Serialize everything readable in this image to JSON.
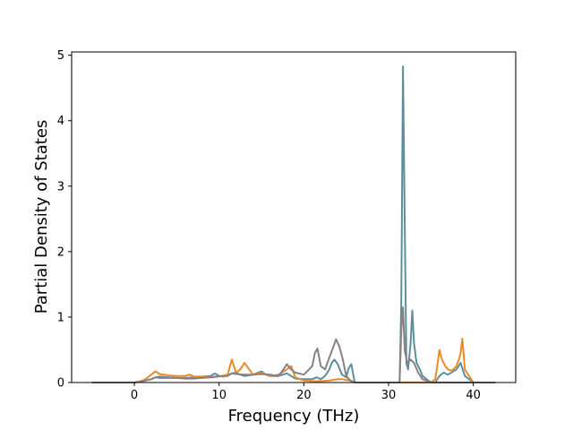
{
  "chart_data": {
    "type": "line",
    "title": "",
    "xlabel": "Frequency (THz)",
    "ylabel": "Partial Density of States",
    "xlim": [
      -7.4,
      45.0
    ],
    "ylim": [
      0,
      5.05
    ],
    "xticks": [
      0,
      10,
      20,
      30,
      40
    ],
    "yticks": [
      0,
      1,
      2,
      3,
      4,
      5
    ],
    "xtick_labels": [
      "0",
      "10",
      "20",
      "30",
      "40"
    ],
    "ytick_labels": [
      "0",
      "1",
      "2",
      "3",
      "4",
      "5"
    ],
    "grid": false,
    "legend": "none",
    "series": [
      {
        "color": "#5c8f9a",
        "x": [
          -5,
          -1,
          0,
          1,
          2,
          2.5,
          3,
          4,
          5,
          6,
          7,
          8,
          9,
          9.5,
          10,
          10.5,
          11,
          11.5,
          12,
          12.5,
          13,
          14,
          15,
          15.5,
          16,
          17,
          18,
          18.5,
          19,
          20,
          21,
          21.5,
          22,
          22.5,
          23,
          23.3,
          23.6,
          24,
          24.5,
          25,
          25.3,
          25.6,
          26,
          30,
          31.3,
          31.5,
          31.7,
          31.9,
          32.1,
          32.3,
          32.6,
          32.8,
          33.0,
          33.3,
          33.7,
          34,
          35,
          35.5,
          36,
          36.5,
          37,
          38,
          38.5,
          39,
          40,
          42.6
        ],
        "values": [
          0,
          0,
          0,
          0.02,
          0.05,
          0.08,
          0.09,
          0.08,
          0.07,
          0.07,
          0.08,
          0.09,
          0.1,
          0.14,
          0.1,
          0.09,
          0.11,
          0.14,
          0.15,
          0.12,
          0.1,
          0.12,
          0.17,
          0.12,
          0.1,
          0.1,
          0.14,
          0.1,
          0.06,
          0.05,
          0.05,
          0.08,
          0.05,
          0.1,
          0.2,
          0.3,
          0.35,
          0.28,
          0.12,
          0.08,
          0.22,
          0.28,
          0,
          0,
          0,
          1.2,
          4.83,
          2.5,
          0.3,
          0.2,
          0.6,
          1.1,
          0.6,
          0.3,
          0.2,
          0.1,
          0,
          0,
          0.1,
          0.15,
          0.12,
          0.2,
          0.3,
          0.1,
          0,
          0
        ]
      },
      {
        "color": "#ec8a26",
        "x": [
          -5,
          -1,
          0,
          1,
          1.5,
          2,
          2.5,
          3,
          4,
          5,
          6,
          6.5,
          7,
          8,
          9,
          10,
          11,
          11.5,
          12,
          12.5,
          13,
          14,
          15,
          16,
          17,
          18,
          18.5,
          19,
          20,
          21,
          22,
          23,
          24,
          24.5,
          25,
          25.5,
          26,
          30,
          32,
          33,
          34,
          35,
          35.5,
          35.8,
          36.0,
          36.3,
          36.7,
          37,
          37.5,
          38,
          38.3,
          38.5,
          38.7,
          39,
          40,
          42.6
        ],
        "values": [
          0,
          0,
          0,
          0.03,
          0.07,
          0.12,
          0.17,
          0.13,
          0.11,
          0.1,
          0.1,
          0.12,
          0.09,
          0.09,
          0.08,
          0.09,
          0.12,
          0.35,
          0.15,
          0.2,
          0.3,
          0.12,
          0.15,
          0.1,
          0.12,
          0.2,
          0.25,
          0.08,
          0.03,
          0.02,
          0.02,
          0.03,
          0.05,
          0.05,
          0.04,
          0.03,
          0,
          0,
          0,
          0,
          0,
          0,
          0.05,
          0.3,
          0.5,
          0.35,
          0.25,
          0.2,
          0.18,
          0.25,
          0.35,
          0.45,
          0.67,
          0.2,
          0,
          0
        ]
      },
      {
        "color": "#8c7f84",
        "x": [
          -5,
          -1,
          0,
          1,
          2,
          2.5,
          3,
          4,
          5,
          6,
          7,
          8,
          9,
          10,
          11,
          11.5,
          12,
          13,
          14,
          15,
          16,
          17,
          17.5,
          18,
          18.5,
          19,
          20,
          21,
          21.3,
          21.6,
          22,
          22.5,
          23,
          23.5,
          23.8,
          24.2,
          24.6,
          25,
          25.5,
          26,
          30,
          31.3,
          31.5,
          31.7,
          31.9,
          32.2,
          32.6,
          33,
          33.5,
          34,
          35,
          36,
          37,
          38,
          39,
          40,
          42.6
        ],
        "values": [
          0,
          0,
          0,
          0.02,
          0.05,
          0.08,
          0.07,
          0.07,
          0.07,
          0.06,
          0.06,
          0.07,
          0.08,
          0.1,
          0.1,
          0.14,
          0.13,
          0.12,
          0.12,
          0.13,
          0.12,
          0.1,
          0.18,
          0.28,
          0.2,
          0.15,
          0.12,
          0.25,
          0.45,
          0.52,
          0.25,
          0.2,
          0.38,
          0.55,
          0.66,
          0.55,
          0.35,
          0.1,
          0.03,
          0,
          0,
          0,
          0.8,
          1.15,
          0.5,
          0.3,
          0.35,
          0.3,
          0.15,
          0.05,
          0,
          0,
          0,
          0,
          0,
          0,
          0
        ]
      }
    ]
  }
}
